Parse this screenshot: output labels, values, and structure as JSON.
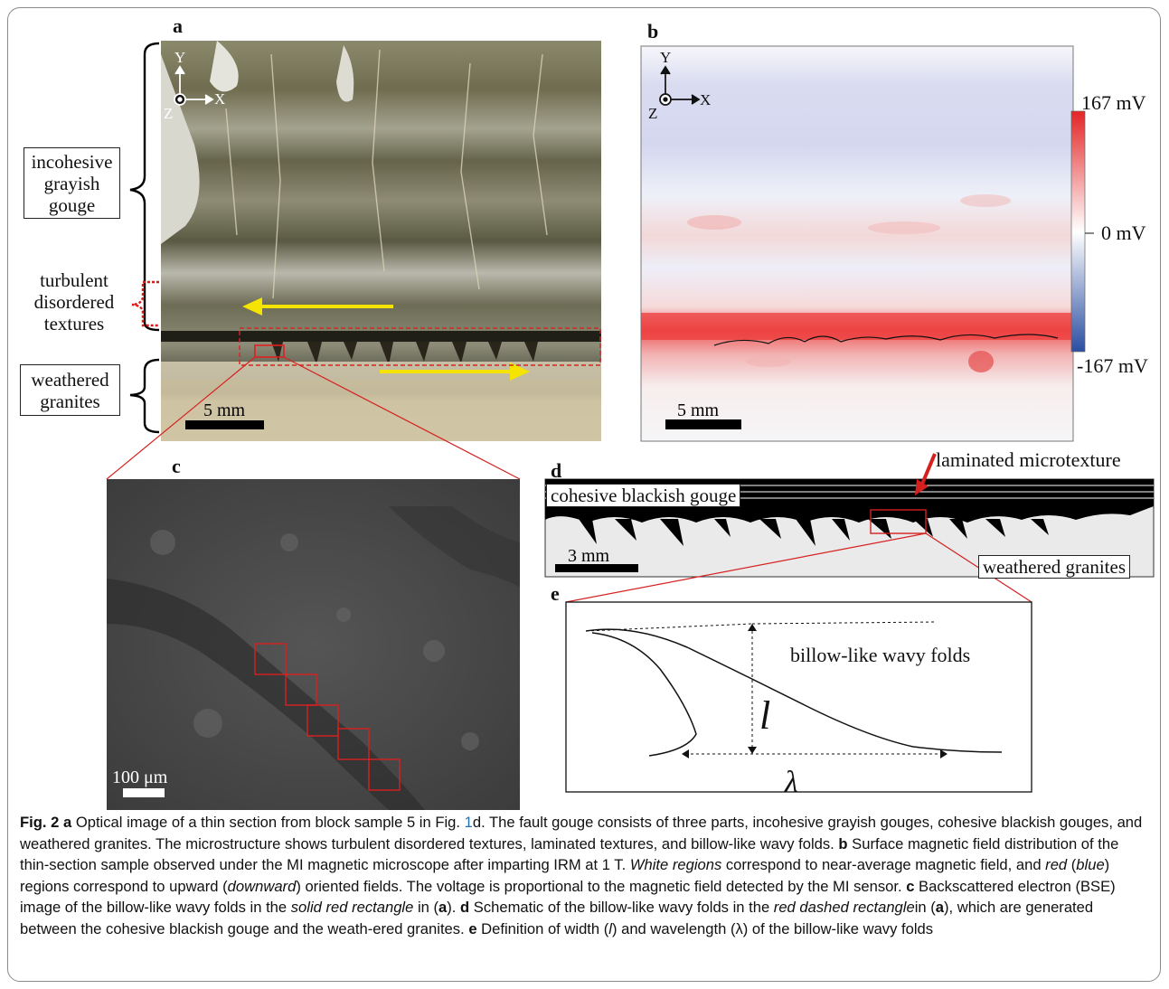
{
  "panels": {
    "a": {
      "letter": "a",
      "labels": {
        "incohesive": "incohesive grayish gouge",
        "turbulent": "turbulent disordered textures",
        "weathered": "weathered granites"
      },
      "axes": {
        "y": "Y",
        "x": "X",
        "z": "Z"
      },
      "scale": "5 mm"
    },
    "b": {
      "letter": "b",
      "axes": {
        "y": "Y",
        "x": "X",
        "z": "Z"
      },
      "scale": "5 mm",
      "colorbar": {
        "max": "167 mV",
        "mid": "0 mV",
        "min": "-167 mV"
      }
    },
    "c": {
      "letter": "c",
      "scale": "100 μm"
    },
    "d": {
      "letter": "d",
      "laminated": "laminated microtexture",
      "cohesive": "cohesive blackish gouge",
      "weathered": "weathered granites",
      "scale": "3 mm"
    },
    "e": {
      "letter": "e",
      "folds": "billow-like wavy folds",
      "l": "l",
      "lambda": "λ"
    }
  },
  "caption": {
    "fig": "Fig. 2",
    "a_letter": "a",
    "a_text1": " Optical image of a thin section from block sample 5 in Fig. ",
    "fig_ref": "1",
    "a_text2": "d. The fault gouge consists of three parts, incohesive grayish gouges, cohesive blackish gouges, and weathered granites. The microstructure shows turbulent disordered textures, laminated textures, and billow-like wavy folds. ",
    "b_letter": "b",
    "b_text1": " Surface magnetic field distribution of the thin-section sample observed under the MI magnetic microscope after imparting IRM at 1 T. ",
    "white_regions": "White regions",
    "b_text2": " correspond to near-average magnetic field, and ",
    "red": "red",
    "b_text3": " (",
    "blue": "blue",
    "b_text4": ") regions correspond to upward (",
    "downward": "downward",
    "b_text5": ") oriented fields. The voltage is proportional to the magnetic field detected by the MI sensor. ",
    "c_letter": "c",
    "c_text1": " Backscattered electron (BSE) image of the billow-like wavy folds in the ",
    "solid_red": "solid red rectangle",
    "c_text2": " in (",
    "a_ref1": "a",
    "c_text3": "). ",
    "d_letter": "d",
    "d_text1": " Schematic of the billow-like wavy folds in the ",
    "red_dashed": "red dashed rectangle",
    "d_text2": "in (",
    "a_ref2": "a",
    "d_text3": "), which are generated between the cohesive blackish gouge and the weath-ered granites. ",
    "e_letter": "e",
    "e_text1": " Definition of width (",
    "l_ital": "l",
    "e_text2": ") and wavelength (λ) of the billow-like wavy folds"
  }
}
